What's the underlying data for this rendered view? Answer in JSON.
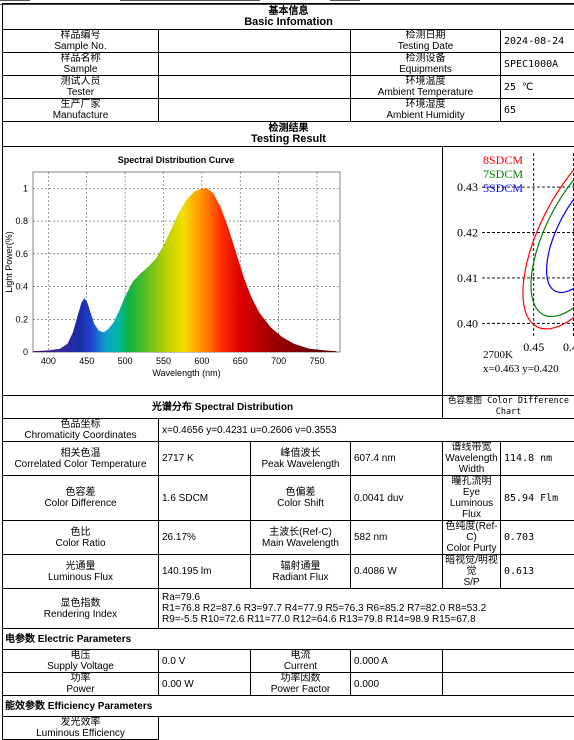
{
  "title": {
    "cn": "基本信息",
    "en": "Basic Infomation"
  },
  "basic": [
    {
      "l_cn": "样品编号",
      "l_en": "Sample No.",
      "l_val": "",
      "r_cn": "检测日期",
      "r_en": "Testing Date",
      "r_val": "2024-08-24"
    },
    {
      "l_cn": "样品名称",
      "l_en": "Sample",
      "l_val": "",
      "r_cn": "检测设备",
      "r_en": "Equipments",
      "r_val": "SPEC1000A"
    },
    {
      "l_cn": "测试人员",
      "l_en": "Tester",
      "l_val": "",
      "r_cn": "环境温度",
      "r_en": "Ambient Temperature",
      "r_val": "25 ℃"
    },
    {
      "l_cn": "生产厂家",
      "l_en": "Manufacture",
      "l_val": "",
      "r_cn": "环境湿度",
      "r_en": "Ambient Humidity",
      "r_val": "65"
    }
  ],
  "result_title": {
    "cn": "检测结果",
    "en": "Testing Result"
  },
  "chart_data": [
    {
      "type": "area",
      "title": "Spectral Distribution Curve",
      "xlabel": "Wavelength (nm)",
      "ylabel": "Light Power(%)",
      "xlim": [
        380,
        780
      ],
      "ylim": [
        0,
        1.1
      ],
      "xticks": [
        400,
        450,
        500,
        550,
        600,
        650,
        700,
        750
      ],
      "yticks": [
        0,
        0.2,
        0.4,
        0.6,
        0.8,
        1
      ],
      "grid": true,
      "x": [
        380,
        400,
        415,
        425,
        432,
        438,
        443,
        447,
        451,
        455,
        460,
        466,
        472,
        478,
        485,
        492,
        500,
        510,
        520,
        530,
        540,
        550,
        560,
        570,
        580,
        590,
        600,
        607,
        615,
        625,
        635,
        645,
        655,
        665,
        675,
        690,
        705,
        720,
        740,
        760,
        775
      ],
      "values": [
        0.005,
        0.01,
        0.02,
        0.05,
        0.12,
        0.22,
        0.3,
        0.33,
        0.3,
        0.24,
        0.17,
        0.13,
        0.12,
        0.14,
        0.18,
        0.25,
        0.34,
        0.43,
        0.48,
        0.52,
        0.57,
        0.65,
        0.75,
        0.85,
        0.93,
        0.98,
        1.0,
        1.0,
        0.97,
        0.88,
        0.75,
        0.6,
        0.45,
        0.33,
        0.24,
        0.15,
        0.09,
        0.05,
        0.02,
        0.01,
        0.005
      ]
    },
    {
      "type": "scatter",
      "title": "",
      "x_ticks": [
        0.45,
        0.46,
        0.47
      ],
      "y_ticks": [
        0.4,
        0.41,
        0.42,
        0.43
      ],
      "xlim": [
        0.437,
        0.481
      ],
      "ylim": [
        0.397,
        0.4375
      ],
      "grid": true,
      "legend": [
        "8SDCM",
        "7SDCM",
        "5SDCM"
      ],
      "ellipses": [
        {
          "name": "8SDCM",
          "color": "#ff0000",
          "cx": 0.463,
          "cy": 0.42,
          "a": 0.0241,
          "b": 0.0108,
          "angle_deg": 58
        },
        {
          "name": "7SDCM",
          "color": "#008000",
          "cx": 0.463,
          "cy": 0.42,
          "a": 0.021,
          "b": 0.0094,
          "angle_deg": 58
        },
        {
          "name": "5SDCM",
          "color": "#0000ff",
          "cx": 0.463,
          "cy": 0.42,
          "a": 0.015,
          "b": 0.0067,
          "angle_deg": 58
        }
      ],
      "center_plus": {
        "x": 0.4657,
        "y": 0.4235
      },
      "measured_point": {
        "x": 0.4605,
        "y": 0.42
      },
      "annotation_cct": "2700K",
      "annotation_xy": "x=0.463  y=0.420"
    }
  ],
  "caption_left": {
    "cn": "光谱分布 ",
    "en": "Spectral Distribution"
  },
  "caption_right": "色容差图 Color Difference Chart",
  "chroma": {
    "cn": "色品坐标",
    "en": "Chromaticity Coordinates",
    "val": "x=0.4656  y=0.4231  u=0.2606  v=0.3553"
  },
  "params": [
    [
      {
        "cn": "相关色温",
        "en": "Correlated Color Temperature",
        "val": "2717 K"
      },
      {
        "cn": "峰值波长",
        "en": "Peak Wavelength",
        "val": "607.4 nm"
      },
      {
        "cn": "谱线带宽",
        "en": "Wavelength Width",
        "val": "114.8  nm"
      }
    ],
    [
      {
        "cn": "色容差",
        "en": "Color Difference",
        "val": "1.6  SDCM"
      },
      {
        "cn": "色偏差",
        "en": "Color Shift",
        "val": "0.0041 duv"
      },
      {
        "cn": "瞳孔流明",
        "en": "Eye Luminous Flux",
        "val": "85.94 Flm"
      }
    ],
    [
      {
        "cn": "色比",
        "en": "Color Ratio",
        "val": "26.17%"
      },
      {
        "cn": "主波长(Ref-C)",
        "en": "Main Wavelength",
        "val": "582 nm"
      },
      {
        "cn": "色纯度(Ref-C)",
        "en": "Color Purty",
        "val": "0.703"
      }
    ],
    [
      {
        "cn": "光通量",
        "en": "Luminous Flux",
        "val": "140.195 lm"
      },
      {
        "cn": "辐射通量",
        "en": "Radiant Flux",
        "val": "0.4086  W"
      },
      {
        "cn": "暗视觉/明视觉",
        "en": "S/P",
        "val": "0.613"
      }
    ]
  ],
  "rendering": {
    "cn": "显色指数",
    "en": "Rendering Index",
    "line1": "Ra=79.6",
    "line2": "R1=76.8  R2=87.6  R3=97.7  R4=77.9  R5=76.3  R6=85.2  R7=82.0  R8=53.2",
    "line3": "R9=-5.5  R10=72.6  R11=77.0  R12=64.6  R13=79.8  R14=98.9  R15=67.8"
  },
  "electric": {
    "title": "电参数 Electric Parameters",
    "rows": [
      [
        {
          "cn": "电压",
          "en": "Supply Voltage",
          "val": "0.0  V"
        },
        {
          "cn": "电流",
          "en": "Current",
          "val": "0.000 A"
        }
      ],
      [
        {
          "cn": "功率",
          "en": "Power",
          "val": "0.00 W"
        },
        {
          "cn": "功率因数",
          "en": "Power Factor",
          "val": "0.000"
        }
      ]
    ]
  },
  "efficiency": {
    "title": "能效参数 Efficiency Parameters",
    "cn": "发光效率",
    "en": "Luminous Efficiency",
    "val": ""
  }
}
